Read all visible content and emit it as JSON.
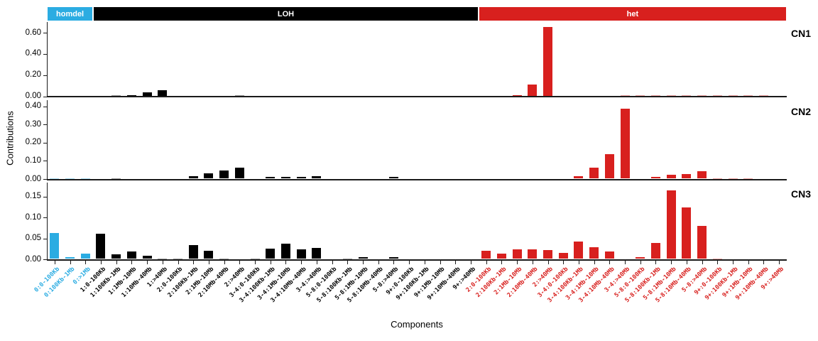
{
  "axes": {
    "y_title": "Contributions",
    "x_title": "Components"
  },
  "sections": [
    {
      "label": "homdel",
      "color": "#2bace2",
      "n_components": 3
    },
    {
      "label": "LOH",
      "color": "#000000",
      "n_components": 25
    },
    {
      "label": "het",
      "color": "#d8201e",
      "n_components": 20
    }
  ],
  "chart_data": {
    "type": "bar",
    "grid": false,
    "legend_position": "top-section-headers",
    "categories": [
      "0:0-100Kb",
      "0:100Kb-1Mb",
      "0:>1Mb",
      "1:0-100Kb",
      "1:100Kb-1Mb",
      "1:1Mb-10Mb",
      "1:10Mb-40Mb",
      "1:>40Mb",
      "2:0-100Kb",
      "2:100Kb-1Mb",
      "2:1Mb-10Mb",
      "2:10Mb-40Mb",
      "2:>40Mb",
      "3-4:0-100Kb",
      "3-4:100Kb-1Mb",
      "3-4:1Mb-10Mb",
      "3-4:10Mb-40Mb",
      "3-4:>40Mb",
      "5-8:0-100Kb",
      "5-8:100Kb-1Mb",
      "5-8:1Mb-10Mb",
      "5-8:10Mb-40Mb",
      "5-8:>40Mb",
      "9+:0-100Kb",
      "9+:100Kb-1Mb",
      "9+:1Mb-10Mb",
      "9+:10Mb-40Mb",
      "9+:>40Mb",
      "2:0-100Kb",
      "2:100Kb-1Mb",
      "2:1Mb-10Mb",
      "2:10Mb-40Mb",
      "2:>40Mb",
      "3-4:0-100Kb",
      "3-4:100Kb-1Mb",
      "3-4:1Mb-10Mb",
      "3-4:10Mb-40Mb",
      "3-4:>40Mb",
      "5-8:0-100Kb",
      "5-8:100Kb-1Mb",
      "5-8:1Mb-10Mb",
      "5-8:10Mb-40Mb",
      "5-8:>40Mb",
      "9+:0-100Kb",
      "9+:100Kb-1Mb",
      "9+:1Mb-10Mb",
      "9+:10Mb-40Mb",
      "9+:>40Mb"
    ],
    "panels": [
      {
        "name": "CN1",
        "ylim": [
          0,
          0.7
        ],
        "yticks": [
          0,
          0.2,
          0.4,
          0.6
        ],
        "values": [
          0,
          0,
          0,
          0,
          0.004,
          0.01,
          0.035,
          0.055,
          0,
          0,
          0,
          0,
          0.004,
          0,
          0,
          0,
          0,
          0,
          0,
          0,
          0,
          0,
          0,
          0,
          0,
          0,
          0,
          0,
          0,
          0,
          0.01,
          0.11,
          0.65,
          0,
          0,
          0,
          0,
          0.002,
          0.002,
          0.002,
          0.002,
          0.002,
          0.002,
          0.002,
          0.002,
          0.002,
          0.002,
          0
        ]
      },
      {
        "name": "CN2",
        "ylim": [
          0,
          0.44
        ],
        "yticks": [
          0,
          0.1,
          0.2,
          0.3,
          0.4
        ],
        "values": [
          0.004,
          0.002,
          0.003,
          0,
          0.003,
          0,
          0,
          0,
          0,
          0.015,
          0.03,
          0.045,
          0.062,
          0,
          0.01,
          0.01,
          0.008,
          0.013,
          0,
          0,
          0,
          0,
          0.008,
          0,
          0,
          0,
          0,
          0,
          0,
          0,
          0,
          0,
          0,
          0,
          0.015,
          0.06,
          0.135,
          0.385,
          0,
          0.01,
          0.02,
          0.025,
          0.04,
          0.002,
          0.002,
          0.004,
          0,
          0
        ]
      },
      {
        "name": "CN3",
        "ylim": [
          0,
          0.19
        ],
        "yticks": [
          0,
          0.05,
          0.1,
          0.15
        ],
        "values": [
          0.062,
          0.005,
          0.012,
          0.06,
          0.011,
          0.018,
          0.007,
          0.002,
          0.001,
          0.033,
          0.019,
          0.002,
          0,
          0.002,
          0.025,
          0.036,
          0.023,
          0.026,
          0,
          0.002,
          0.004,
          0,
          0.004,
          0,
          0,
          0,
          0,
          0,
          0.02,
          0.012,
          0.023,
          0.023,
          0.022,
          0.015,
          0.042,
          0.028,
          0.018,
          0,
          0.005,
          0.039,
          0.165,
          0.124,
          0.08,
          0.002,
          0,
          0,
          0,
          0
        ]
      }
    ]
  }
}
